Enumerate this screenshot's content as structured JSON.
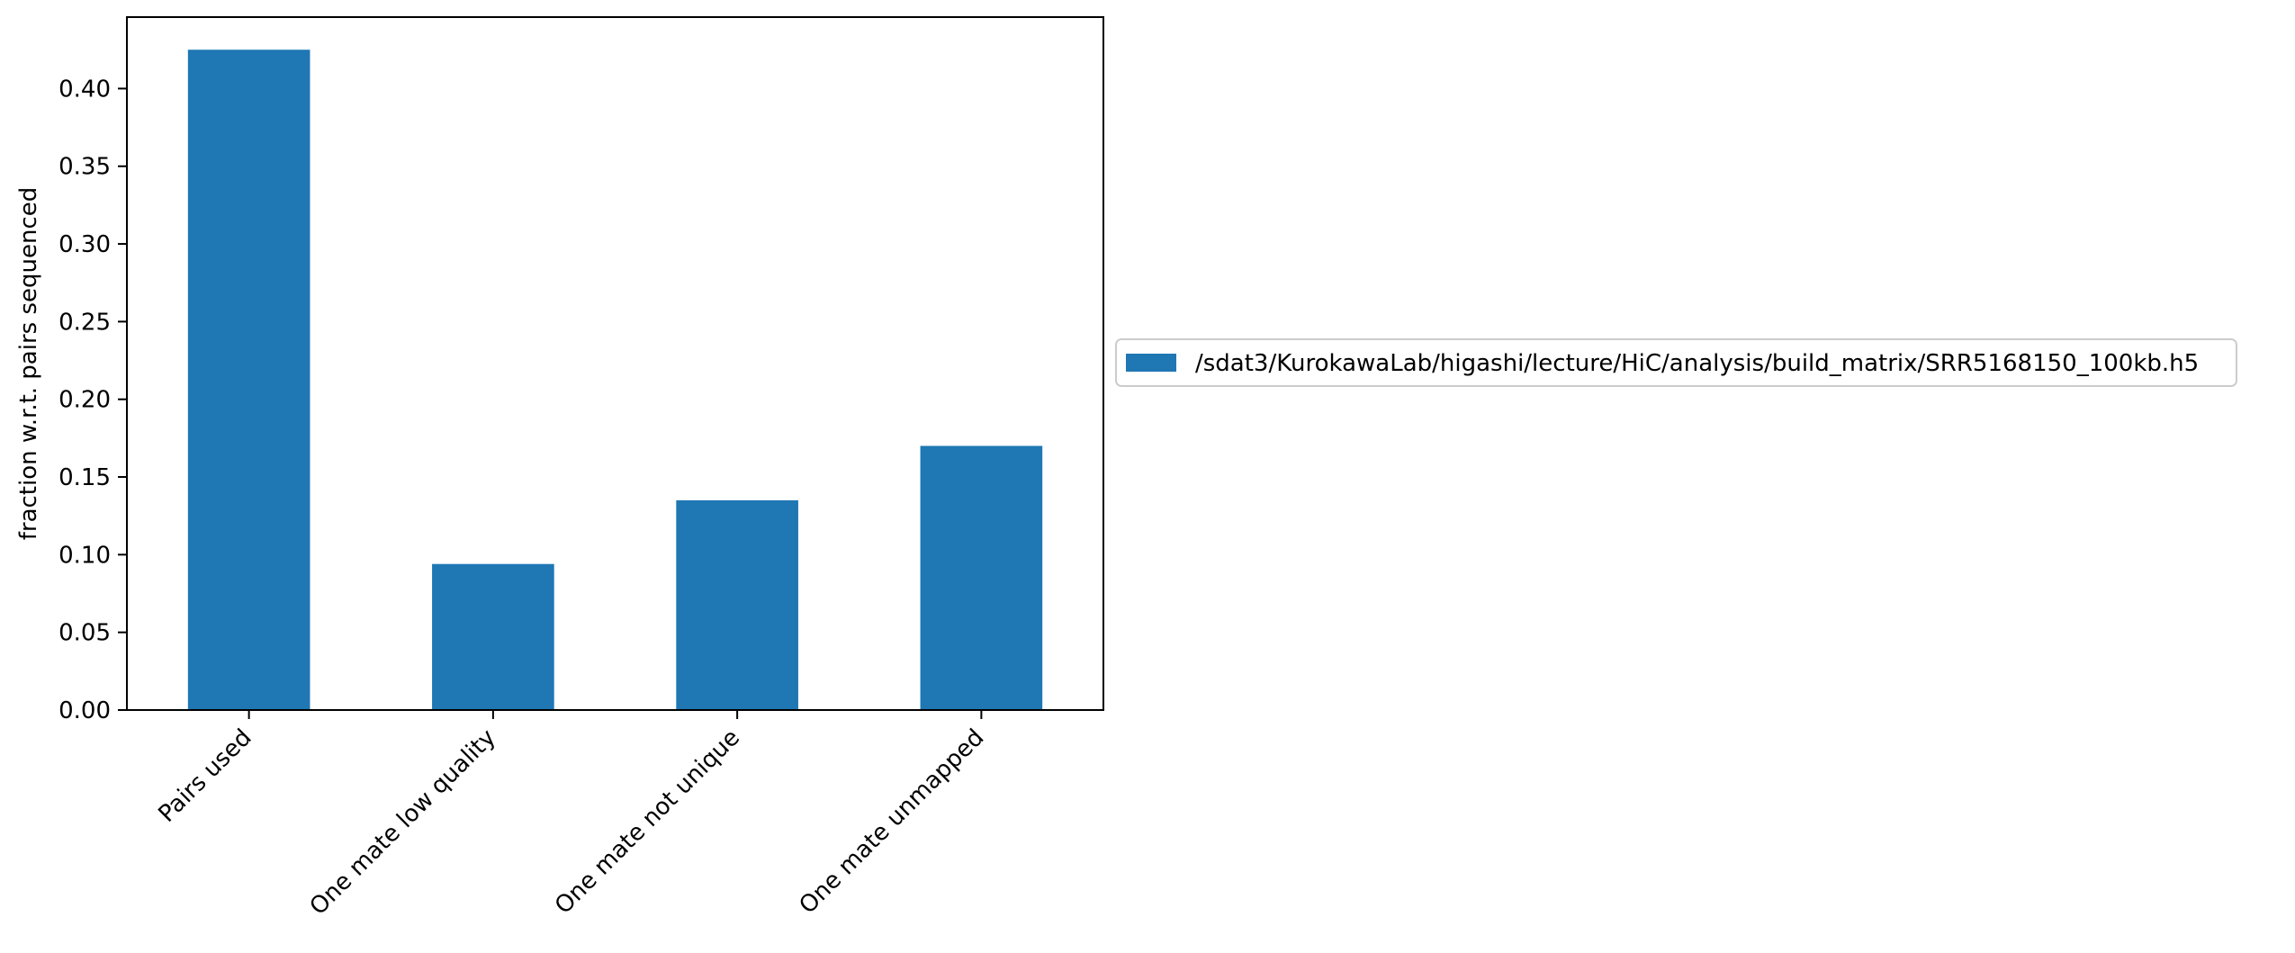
{
  "chart_data": {
    "type": "bar",
    "categories": [
      "Pairs used",
      "One mate low quality",
      "One mate not unique",
      "One mate unmapped"
    ],
    "series": [
      {
        "name": "/sdat3/KurokawaLab/higashi/lecture/HiC/analysis/build_matrix/SRR5168150_100kb.h5",
        "values": [
          0.425,
          0.094,
          0.135,
          0.17
        ],
        "color": "#1f77b4"
      }
    ],
    "ylabel": "fraction w.r.t. pairs sequenced",
    "ylim": [
      0,
      0.446
    ],
    "yticks": [
      "0.00",
      "0.05",
      "0.10",
      "0.15",
      "0.20",
      "0.25",
      "0.30",
      "0.35",
      "0.40"
    ],
    "grid": false,
    "legend_position": "right"
  }
}
